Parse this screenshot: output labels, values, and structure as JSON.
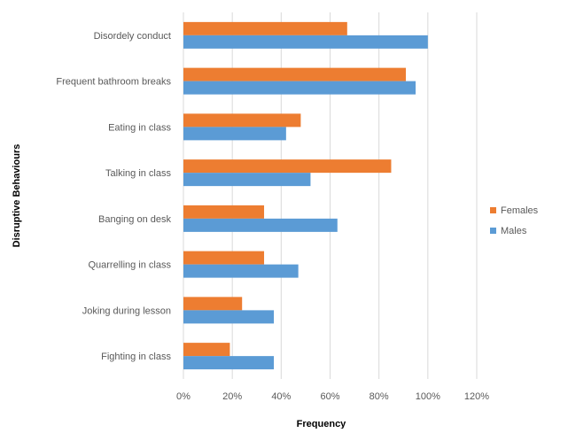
{
  "chart_data": {
    "type": "bar",
    "orientation": "horizontal",
    "categories": [
      "Disordely conduct",
      "Frequent bathroom breaks",
      "Eating in class",
      "Talking in class",
      "Banging on desk",
      "Quarrelling in class",
      "Joking during lesson",
      "Fighting in class"
    ],
    "series": [
      {
        "name": "Females",
        "color": "#ED7D31",
        "values": [
          67,
          91,
          48,
          85,
          33,
          33,
          24,
          19
        ]
      },
      {
        "name": "Males",
        "color": "#5B9BD5",
        "values": [
          100,
          95,
          42,
          52,
          63,
          47,
          37,
          37
        ]
      }
    ],
    "xlabel": "Frequency",
    "ylabel": "Disruptive Behaviours",
    "xlim": [
      0,
      120
    ],
    "x_ticks": [
      "0%",
      "20%",
      "40%",
      "60%",
      "80%",
      "100%",
      "120%"
    ],
    "grid": "vertical",
    "legend_position": "right"
  }
}
